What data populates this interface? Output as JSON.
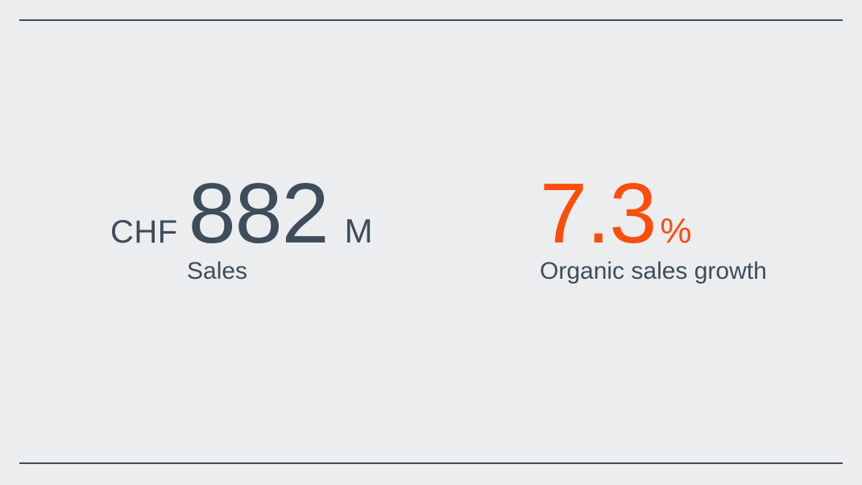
{
  "page": {
    "background_color": "#ecedee",
    "rule_color": "#3d4d5b"
  },
  "colors": {
    "primary_dark": "#3d4d5b",
    "accent_orange": "#fb4e0a"
  },
  "stats": [
    {
      "id": "sales",
      "prefix": "CHF",
      "value": "882",
      "suffix": "M",
      "label": "Sales",
      "value_color": "#3d4d5b"
    },
    {
      "id": "organic-sales-growth",
      "prefix": "",
      "value": "7.3",
      "suffix": "%",
      "label": "Organic sales growth",
      "value_color": "#fb4e0a"
    }
  ]
}
